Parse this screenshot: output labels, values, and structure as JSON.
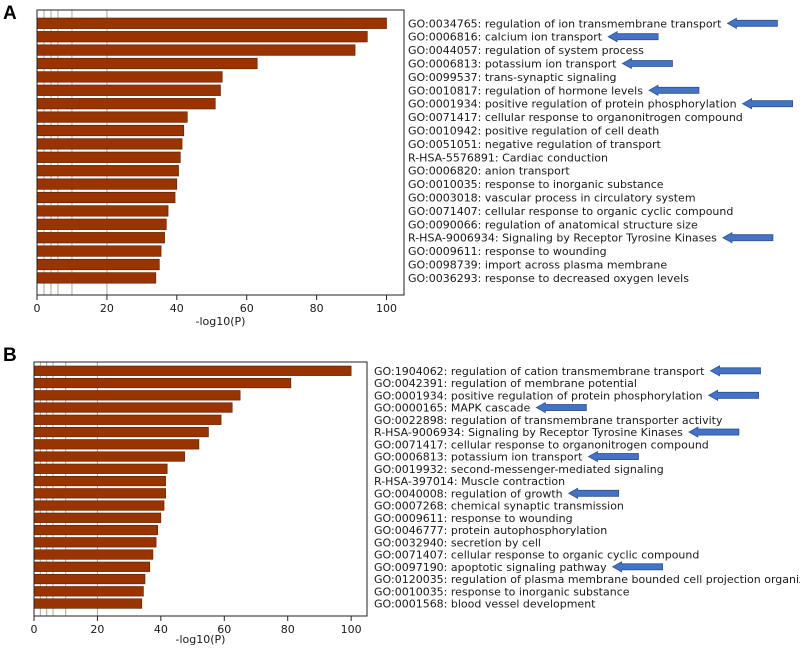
{
  "figure": {
    "bar_color": "#993300",
    "arrow_color": "#4472c4",
    "arrow_edge": "#2f528f"
  },
  "chart_data": [
    {
      "panel": "A",
      "type": "bar",
      "orientation": "horizontal",
      "xlabel": "-log10(P)",
      "xlim": [
        0,
        105
      ],
      "xticks": [
        0,
        20,
        40,
        60,
        80,
        100
      ],
      "reference_lines": [
        2,
        4,
        6,
        10,
        20
      ],
      "categories": [
        "GO:0034765: regulation of ion transmembrane transport",
        "GO:0006816: calcium ion transport",
        "GO:0044057: regulation of system process",
        "GO:0006813: potassium ion transport",
        "GO:0099537: trans-synaptic signaling",
        "GO:0010817: regulation of hormone levels",
        "GO:0001934: positive regulation of protein phosphorylation",
        "GO:0071417: cellular response to organonitrogen compound",
        "GO:0010942: positive regulation of cell death",
        "GO:0051051: negative regulation of transport",
        "R-HSA-5576891: Cardiac conduction",
        "GO:0006820: anion transport",
        "GO:0010035: response to inorganic substance",
        "GO:0003018: vascular process in circulatory system",
        "GO:0071407: cellular response to organic cyclic compound",
        "GO:0090066: regulation of anatomical structure size",
        "R-HSA-9006934: Signaling by Receptor Tyrosine Kinases",
        "GO:0009611: response to wounding",
        "GO:0098739: import across plasma membrane",
        "GO:0036293: response to decreased oxygen levels"
      ],
      "values": [
        100,
        94.5,
        91,
        63,
        53,
        52.5,
        51,
        43,
        42,
        41.5,
        41,
        40.5,
        40,
        39.5,
        37.5,
        37,
        36.5,
        35.5,
        35,
        34
      ],
      "highlighted": [
        0,
        1,
        3,
        5,
        6,
        16
      ]
    },
    {
      "panel": "B",
      "type": "bar",
      "orientation": "horizontal",
      "xlabel": "-log10(P)",
      "xlim": [
        0,
        105
      ],
      "xticks": [
        0,
        20,
        40,
        60,
        80,
        100
      ],
      "reference_lines": [
        2,
        4,
        6,
        10,
        20
      ],
      "categories": [
        "GO:1904062: regulation of cation transmembrane transport",
        "GO:0042391: regulation of membrane potential",
        "GO:0001934: positive regulation of protein phosphorylation",
        "GO:0000165: MAPK cascade",
        "GO:0022898: regulation of transmembrane transporter activity",
        "R-HSA-9006934: Signaling by Receptor Tyrosine Kinases",
        "GO:0071417: cellular response to organonitrogen compound",
        "GO:0006813: potassium ion transport",
        "GO:0019932: second-messenger-mediated signaling",
        "R-HSA-397014: Muscle contraction",
        "GO:0040008: regulation of growth",
        "GO:0007268: chemical synaptic transmission",
        "GO:0009611: response to wounding",
        "GO:0046777: protein autophosphorylation",
        "GO:0032940: secretion by cell",
        "GO:0071407: cellular response to organic cyclic compound",
        "GO:0097190: apoptotic signaling pathway",
        "GO:0120035: regulation of plasma membrane bounded cell projection organization",
        "GO:0010035: response to inorganic substance",
        "GO:0001568: blood vessel development"
      ],
      "values": [
        100,
        81,
        65,
        62.5,
        59,
        55,
        52,
        47.5,
        42,
        41.5,
        41.5,
        41,
        40,
        39,
        38.5,
        37.5,
        36.5,
        35,
        34.5,
        34
      ],
      "highlighted": [
        0,
        2,
        3,
        5,
        7,
        10,
        16
      ]
    }
  ]
}
